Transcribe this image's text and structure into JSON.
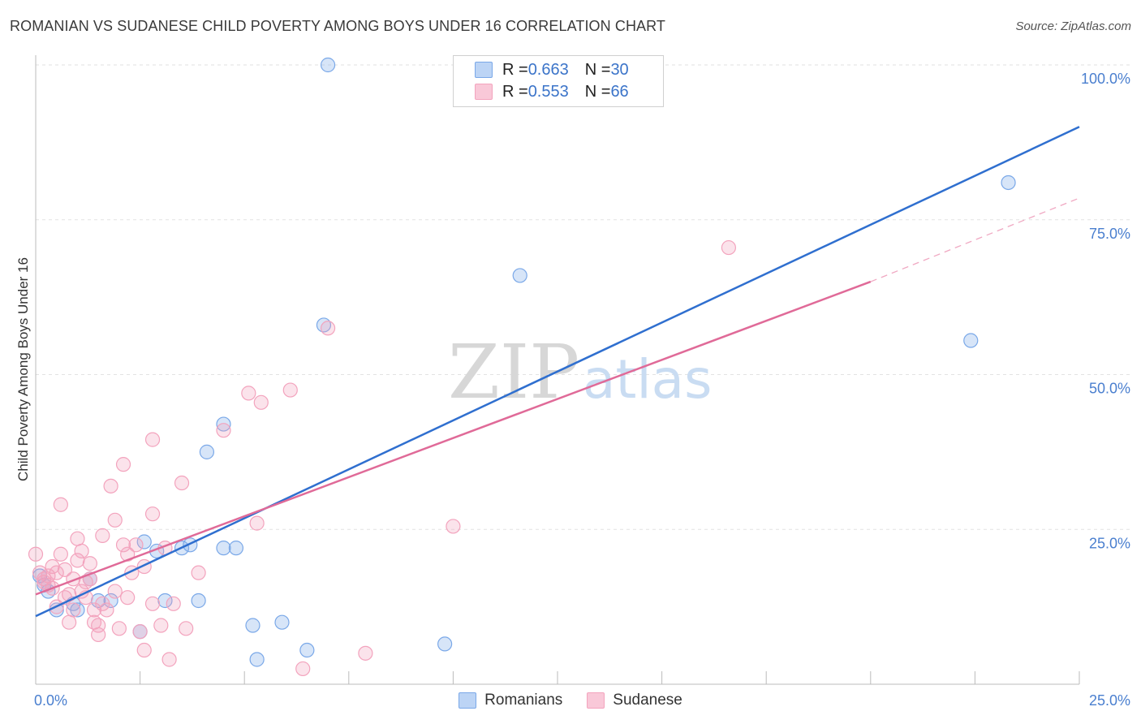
{
  "title": "ROMANIAN VS SUDANESE CHILD POVERTY AMONG BOYS UNDER 16 CORRELATION CHART",
  "source": "Source: ZipAtlas.com",
  "watermark": {
    "zip": "ZIP",
    "atlas": "atlas"
  },
  "legend": {
    "romanians": {
      "r_label": "R = ",
      "r_value": "0.663",
      "n_label": "N = ",
      "n_value": "30"
    },
    "sudanese": {
      "r_label": "R = ",
      "r_value": "0.553",
      "n_label": "N = ",
      "n_value": "66"
    }
  },
  "bottom_legend": {
    "romanians": "Romanians",
    "sudanese": "Sudanese"
  },
  "chart_data": {
    "type": "scatter",
    "title": "ROMANIAN VS SUDANESE CHILD POVERTY AMONG BOYS UNDER 16 CORRELATION CHART",
    "xlabel": "",
    "ylabel": "Child Poverty Among Boys Under 16",
    "xlim": [
      0,
      25
    ],
    "ylim": [
      0,
      100
    ],
    "x_tick_labels": [
      "0.0%",
      "25.0%"
    ],
    "y_tick_labels": [
      "25.0%",
      "50.0%",
      "75.0%",
      "100.0%"
    ],
    "y_tick_values": [
      25,
      50,
      75,
      100
    ],
    "colors": {
      "romanians": "#7aa8e8",
      "sudanese": "#f3a3bd",
      "romanians_line": "#2f6fcf",
      "sudanese_line": "#e06a98"
    },
    "series": [
      {
        "name": "Romanians",
        "R": 0.663,
        "N": 30,
        "trend": {
          "x": [
            0,
            25
          ],
          "y": [
            11,
            90
          ]
        },
        "points": [
          [
            7.0,
            100
          ],
          [
            0.3,
            15
          ],
          [
            0.5,
            12
          ],
          [
            0.9,
            13
          ],
          [
            1.5,
            13.5
          ],
          [
            1.0,
            12
          ],
          [
            1.3,
            17
          ],
          [
            2.5,
            8.5
          ],
          [
            2.6,
            23
          ],
          [
            2.9,
            21.5
          ],
          [
            3.5,
            22
          ],
          [
            3.7,
            22.5
          ],
          [
            3.1,
            13.5
          ],
          [
            3.9,
            13.5
          ],
          [
            4.1,
            37.5
          ],
          [
            4.5,
            42
          ],
          [
            4.5,
            22
          ],
          [
            4.8,
            22
          ],
          [
            5.2,
            9.5
          ],
          [
            5.3,
            4
          ],
          [
            5.9,
            10
          ],
          [
            6.5,
            5.5
          ],
          [
            6.9,
            58
          ],
          [
            9.8,
            6.5
          ],
          [
            11.6,
            66
          ],
          [
            22.4,
            55.5
          ],
          [
            23.3,
            81
          ],
          [
            0.2,
            16
          ],
          [
            0.1,
            17.5
          ],
          [
            1.8,
            13.5
          ]
        ]
      },
      {
        "name": "Sudanese",
        "R": 0.553,
        "N": 66,
        "trend": {
          "x": [
            0,
            20
          ],
          "y": [
            14.5,
            65
          ]
        },
        "trend_dashed": {
          "x": [
            20,
            25
          ],
          "y": [
            65,
            78.5
          ]
        },
        "points": [
          [
            0.0,
            21
          ],
          [
            0.1,
            18
          ],
          [
            0.2,
            17
          ],
          [
            0.3,
            16
          ],
          [
            0.4,
            19
          ],
          [
            0.5,
            12.5
          ],
          [
            0.6,
            21
          ],
          [
            0.6,
            29
          ],
          [
            0.7,
            14
          ],
          [
            0.8,
            10
          ],
          [
            0.9,
            17
          ],
          [
            1.0,
            23.5
          ],
          [
            1.0,
            20
          ],
          [
            1.1,
            15
          ],
          [
            1.2,
            16.5
          ],
          [
            1.3,
            19.5
          ],
          [
            1.4,
            12
          ],
          [
            1.5,
            8
          ],
          [
            1.5,
            9.5
          ],
          [
            1.6,
            24
          ],
          [
            1.7,
            12
          ],
          [
            1.8,
            32
          ],
          [
            1.9,
            26.5
          ],
          [
            2.0,
            9
          ],
          [
            2.1,
            22.5
          ],
          [
            2.1,
            35.5
          ],
          [
            2.2,
            21
          ],
          [
            2.3,
            18
          ],
          [
            2.4,
            22.5
          ],
          [
            2.5,
            8.5
          ],
          [
            2.6,
            19
          ],
          [
            2.6,
            5.5
          ],
          [
            2.8,
            27.5
          ],
          [
            2.8,
            13
          ],
          [
            2.8,
            39.5
          ],
          [
            3.0,
            9.5
          ],
          [
            3.1,
            22
          ],
          [
            3.2,
            4
          ],
          [
            3.3,
            13
          ],
          [
            3.5,
            32.5
          ],
          [
            3.6,
            9
          ],
          [
            3.9,
            18
          ],
          [
            4.5,
            41
          ],
          [
            5.1,
            47
          ],
          [
            5.3,
            26
          ],
          [
            5.4,
            45.5
          ],
          [
            6.1,
            47.5
          ],
          [
            6.4,
            2.5
          ],
          [
            7.0,
            57.5
          ],
          [
            7.9,
            5
          ],
          [
            10.0,
            25.5
          ],
          [
            16.6,
            70.5
          ],
          [
            0.3,
            17.5
          ],
          [
            0.4,
            15.5
          ],
          [
            0.7,
            18.5
          ],
          [
            0.9,
            12
          ],
          [
            1.2,
            14
          ],
          [
            1.3,
            17
          ],
          [
            1.6,
            13
          ],
          [
            0.2,
            16.5
          ],
          [
            0.5,
            18
          ],
          [
            1.4,
            10
          ],
          [
            1.1,
            21.5
          ],
          [
            0.8,
            14.5
          ],
          [
            2.2,
            14
          ],
          [
            1.9,
            15
          ]
        ]
      }
    ]
  }
}
